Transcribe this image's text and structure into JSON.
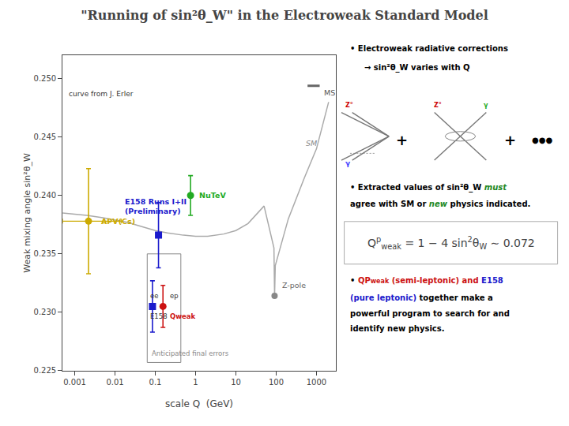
{
  "chart_data": {
    "type": "scatter",
    "title": "\"Running of sin²θ_W\" in the Electroweak Standard Model",
    "xlabel": "scale Q  (GeV)",
    "ylabel": "Weak mixing angle sin²θ_W",
    "log": "x",
    "grid": false,
    "xlim": [
      0.0005,
      3000
    ],
    "ylim": [
      0.225,
      0.252
    ],
    "xticks": [
      0.001,
      0.01,
      0.1,
      1,
      10,
      100,
      1000
    ],
    "yticks": [
      0.225,
      {
        "value": 0.23,
        "label": "0.230"
      },
      0.235,
      {
        "value": 0.24,
        "label": "0.240"
      },
      0.245,
      {
        "value": 0.25,
        "label": "0.250"
      }
    ],
    "series": [
      {
        "type": "line",
        "color": "#aaaaaa",
        "x": [
          0.0005,
          0.001,
          0.002,
          0.005,
          0.01,
          0.02,
          0.05,
          0.1,
          0.2,
          0.5,
          1.0,
          2.0,
          5.0,
          10.0,
          20.0,
          50.0,
          88.0,
          91.2,
          95.0,
          200.0,
          500.0,
          1000.0,
          2000.0
        ],
        "values": [
          0.2385,
          0.2384,
          0.2383,
          0.2381,
          0.2379,
          0.2377,
          0.2373,
          0.237,
          0.2368,
          0.2366,
          0.2365,
          0.2365,
          0.2367,
          0.237,
          0.2376,
          0.2391,
          0.2355,
          0.2314,
          0.234,
          0.238,
          0.2415,
          0.244,
          0.248
        ]
      },
      {
        "type": "line",
        "color": "#666666",
        "x": [
          600,
          1200
        ],
        "values": [
          0.2494,
          0.2494
        ]
      }
    ],
    "points": [
      {
        "x": 0.0022,
        "y": 0.2378,
        "yerr": 0.0045,
        "xerr_lo": 0.0017,
        "xerr_hi": 0.012,
        "color": "#ccaa00",
        "marker": "circle",
        "labels": [
          {
            "text": "APV(Cs)",
            "color": "#ccaa00",
            "style": "bold"
          }
        ]
      },
      {
        "x": 0.12,
        "y": 0.2366,
        "yerr": 0.0028,
        "color": "#1a1acc",
        "marker": "square",
        "labels": [
          {
            "text": "E158 Runs I+II\n(Preliminary)",
            "color": "#1a1acc",
            "style": "bold"
          }
        ]
      },
      {
        "x": 0.75,
        "y": 0.24,
        "yerr": 0.0017,
        "color": "#22aa22",
        "marker": "circle",
        "labels": [
          {
            "text": "NuTeV",
            "color": "#22aa22",
            "style": "bold"
          }
        ]
      },
      {
        "x": 91.2,
        "y": 0.2314,
        "color": "#888888",
        "marker": "circle",
        "labels": [
          {
            "text": "Z-pole",
            "color": "#666666"
          }
        ]
      },
      {
        "x": 0.085,
        "y": 0.2305,
        "yerr": 0.0022,
        "color": "#1a1acc",
        "marker": "square",
        "labels": [
          {
            "text": "ee",
            "color": "#333333"
          },
          {
            "text": "E158",
            "color": "#333333"
          }
        ]
      },
      {
        "x": 0.155,
        "y": 0.2305,
        "yerr": 0.0018,
        "color": "#cc1111",
        "marker": "circle",
        "labels": [
          {
            "text": "ep",
            "color": "#333333"
          },
          {
            "text": "Qweak",
            "color": "#cc1111",
            "style": "bold"
          }
        ]
      }
    ],
    "inset": {
      "x": [
        0.063,
        0.43
      ],
      "y": [
        0.2257,
        0.235
      ],
      "label": {
        "text": "Anticipated final errors",
        "color": "#888888"
      }
    },
    "annotations": [
      {
        "text": "MS",
        "color": "#555555"
      },
      {
        "text": "SM",
        "color": "#888888",
        "style": "italic"
      },
      {
        "text": "curve from J. Erler",
        "color": "#333333"
      }
    ],
    "diagram_labels": [
      {
        "text": "Z°",
        "color": "#cc0000"
      },
      {
        "text": "γ",
        "color": "#4444ff"
      },
      {
        "text": "+"
      },
      {
        "text": "Z°",
        "color": "#cc0000"
      },
      {
        "text": "γ",
        "color": "#22aa22"
      },
      {
        "text": "+"
      },
      {
        "text": "●●●"
      }
    ],
    "panel": [
      [
        {
          "text": "• Electroweak radiative corrections"
        }
      ],
      [
        {
          "text": "→ sin²θ_W varies with Q"
        }
      ],
      [
        {
          "text": "• Extracted values of sin²θ_W "
        },
        {
          "text": "must",
          "color": "#228822",
          "style": "italic"
        }
      ],
      [
        {
          "text": "agree with SM or "
        },
        {
          "text": "new",
          "color": "#228822",
          "style": "italic"
        },
        {
          "text": " physics indicated."
        }
      ],
      [
        {
          "text": "• "
        },
        {
          "text": "QP",
          "color": "#cc1111"
        },
        {
          "text": "weak",
          "color": "#cc1111",
          "style": "small"
        },
        {
          "text": " (semi-leptonic) and ",
          "color": "#cc1111"
        },
        {
          "text": "E158",
          "color": "#1a1acc"
        }
      ],
      [
        {
          "text": "(pure leptonic)",
          "color": "#1a1acc"
        },
        {
          "text": " together make a"
        }
      ],
      [
        {
          "text": "powerful program to search for and"
        }
      ],
      [
        {
          "text": "identify new physics."
        }
      ]
    ],
    "formula": [
      {
        "text": "Q"
      },
      {
        "text": "p",
        "style": "sup"
      },
      {
        "text": "weak",
        "style": "sub"
      },
      {
        "text": " = 1 − 4 sin"
      },
      {
        "text": "2",
        "style": "sup"
      },
      {
        "text": "θ"
      },
      {
        "text": "W",
        "style": "sub"
      },
      {
        "text": " ∼ 0.072"
      }
    ]
  }
}
